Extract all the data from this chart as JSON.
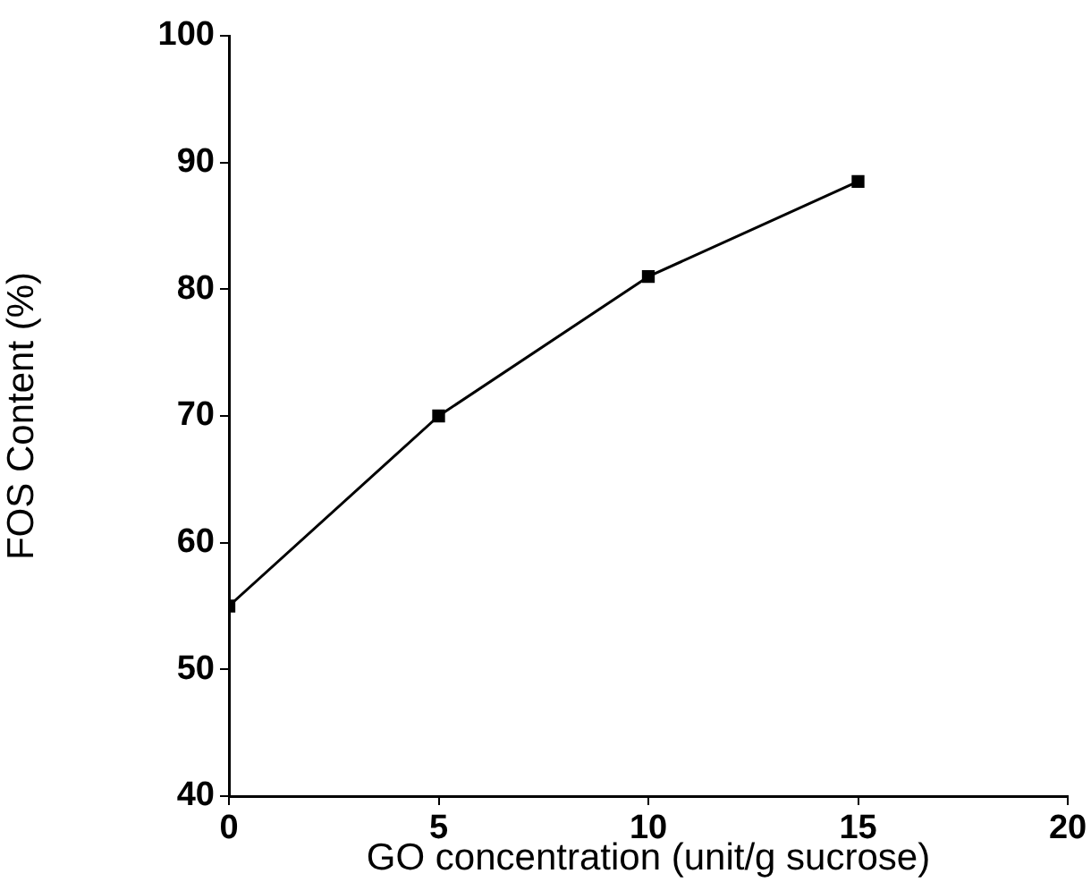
{
  "chart_data": {
    "type": "line",
    "xlabel": "GO concentration (unit/g sucrose)",
    "ylabel": "FOS Content (%)",
    "x": [
      0,
      5,
      10,
      15
    ],
    "series": [
      {
        "color": "#000000",
        "values": [
          55,
          70,
          81,
          88.5
        ]
      }
    ],
    "xlim": [
      0,
      20
    ],
    "xticks": [
      0,
      5,
      10,
      15,
      20
    ],
    "ylim": [
      40,
      100
    ],
    "yticks": [
      40,
      50,
      60,
      70,
      80,
      90,
      100
    ],
    "marker": "square",
    "line_style": "solid",
    "legend": false
  }
}
